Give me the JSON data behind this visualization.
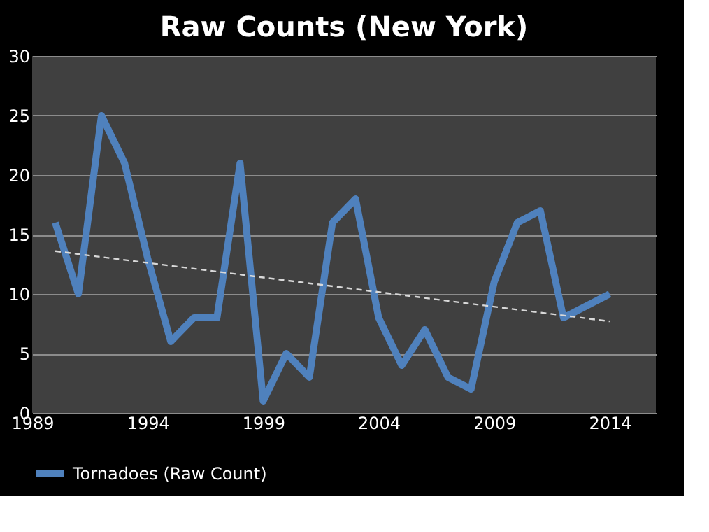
{
  "chart_data": {
    "type": "line",
    "title": "Raw Counts (New York)",
    "x": [
      1990,
      1991,
      1992,
      1993,
      1994,
      1995,
      1996,
      1997,
      1998,
      1999,
      2000,
      2001,
      2002,
      2003,
      2004,
      2005,
      2006,
      2007,
      2008,
      2009,
      2010,
      2011,
      2012,
      2013,
      2014
    ],
    "series": [
      {
        "name": "Tornadoes (Raw Count)",
        "color": "#4f81bd",
        "values": [
          16,
          10,
          25,
          21,
          13,
          6,
          8,
          8,
          21,
          1,
          5,
          3,
          16,
          18,
          8,
          4,
          7,
          3,
          2,
          11,
          16,
          17,
          8,
          9,
          10
        ]
      },
      {
        "type": "line",
        "color": "#d9d9d9",
        "line_style": "dashed",
        "x": [
          1990,
          2014
        ],
        "values": [
          13.6,
          7.7
        ]
      }
    ],
    "xlim": [
      1989,
      2016
    ],
    "xticks": [
      1989,
      1994,
      1999,
      2004,
      2009,
      2014
    ],
    "ylim": [
      0,
      30
    ],
    "yticks": [
      0,
      5,
      10,
      15,
      20,
      25,
      30
    ],
    "grid": "y",
    "legend": "bottom"
  }
}
